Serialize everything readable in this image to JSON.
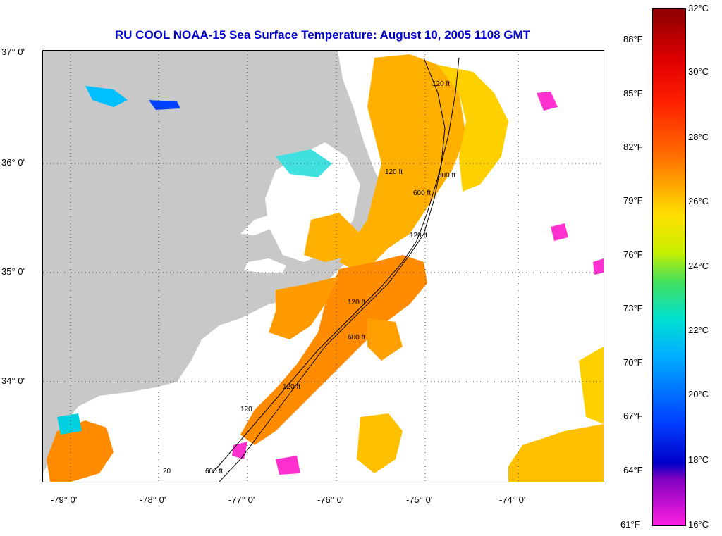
{
  "title": "RU COOL  NOAA-15  Sea Surface Temperature:  August 10, 2005 1108 GMT",
  "latitude_labels": [
    "37° 0'",
    "36° 0'",
    "35° 0'",
    "34° 0'"
  ],
  "longitude_labels": [
    "-79° 0'",
    "-78° 0'",
    "-77° 0'",
    "-76° 0'",
    "-75° 0'",
    "-74° 0'"
  ],
  "contour_labels": [
    "120 ft",
    "600 ft",
    "600 ft",
    "120 ft",
    "120 ft",
    "120 ft",
    "600 ft",
    "120 ft",
    "600 ft",
    "120",
    "20"
  ],
  "colorbar": {
    "celsius": [
      "32°C",
      "30°C",
      "28°C",
      "26°C",
      "24°C",
      "22°C",
      "20°C",
      "18°C",
      "16°C"
    ],
    "fahrenheit": [
      "88°F",
      "85°F",
      "82°F",
      "79°F",
      "76°F",
      "73°F",
      "70°F",
      "67°F",
      "64°F",
      "61°F"
    ]
  },
  "colors": {
    "land": "#c8c8c8",
    "title": "#0000cc",
    "warm": "#ff8c00",
    "mild": "#ffd000",
    "cool": "#00d0e0",
    "cold": "#ff30d0"
  }
}
